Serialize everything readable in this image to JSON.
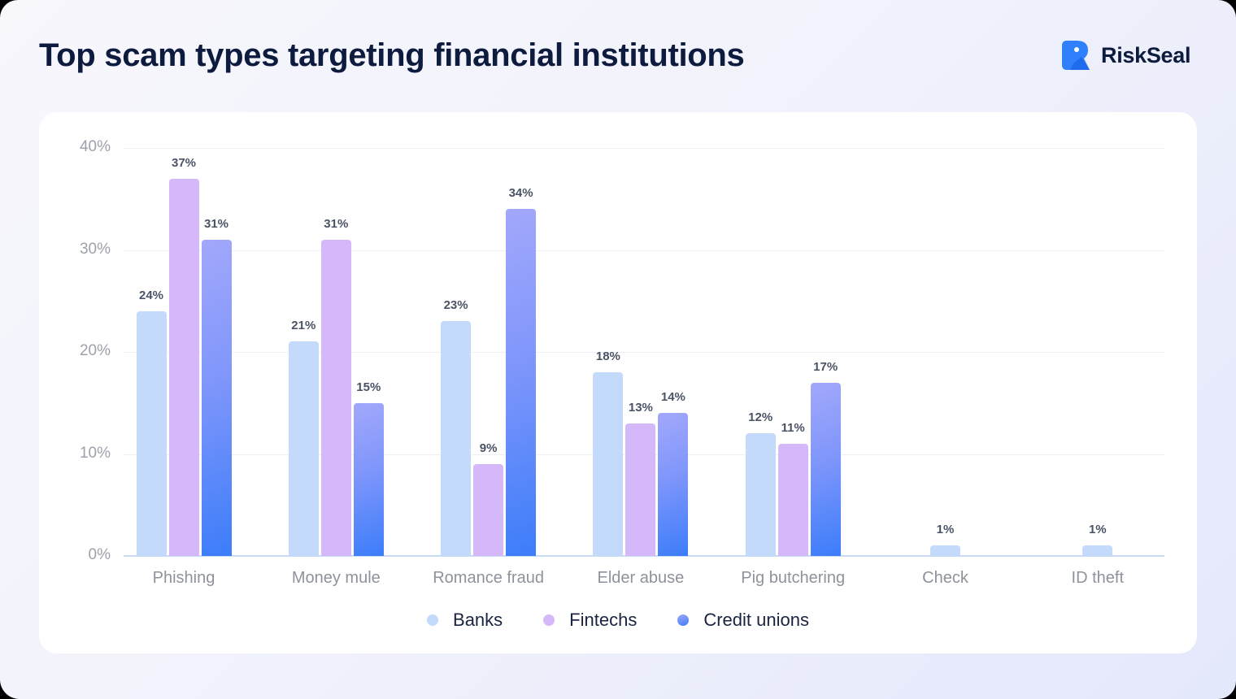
{
  "header": {
    "title": "Top scam types targeting financial institutions",
    "brand": "RiskSeal"
  },
  "colors": {
    "banks": "#c3dafb",
    "fintechs": "#d5b8fa",
    "credit_unions": "#5b8bfb",
    "title": "#0d1b3e",
    "brand_blue": "#2f80fa"
  },
  "legend": [
    {
      "key": "banks",
      "label": "Banks"
    },
    {
      "key": "fintechs",
      "label": "Fintechs"
    },
    {
      "key": "cu",
      "label": "Credit unions"
    }
  ],
  "chart_data": {
    "type": "bar",
    "title": "Top scam types targeting financial institutions",
    "xlabel": "",
    "ylabel": "",
    "ylim": [
      0,
      40
    ],
    "yticks": [
      "0%",
      "10%",
      "20%",
      "30%",
      "40%"
    ],
    "grid": true,
    "legend_position": "bottom",
    "categories": [
      "Phishing",
      "Money mule",
      "Romance fraud",
      "Elder abuse",
      "Pig butchering",
      "Check",
      "ID theft"
    ],
    "series": [
      {
        "name": "Banks",
        "key": "banks",
        "values": [
          24,
          21,
          23,
          18,
          12,
          1,
          1
        ]
      },
      {
        "name": "Fintechs",
        "key": "fintechs",
        "values": [
          37,
          31,
          9,
          13,
          11,
          null,
          null
        ]
      },
      {
        "name": "Credit unions",
        "key": "cu",
        "values": [
          31,
          15,
          34,
          14,
          17,
          null,
          null
        ]
      }
    ]
  }
}
